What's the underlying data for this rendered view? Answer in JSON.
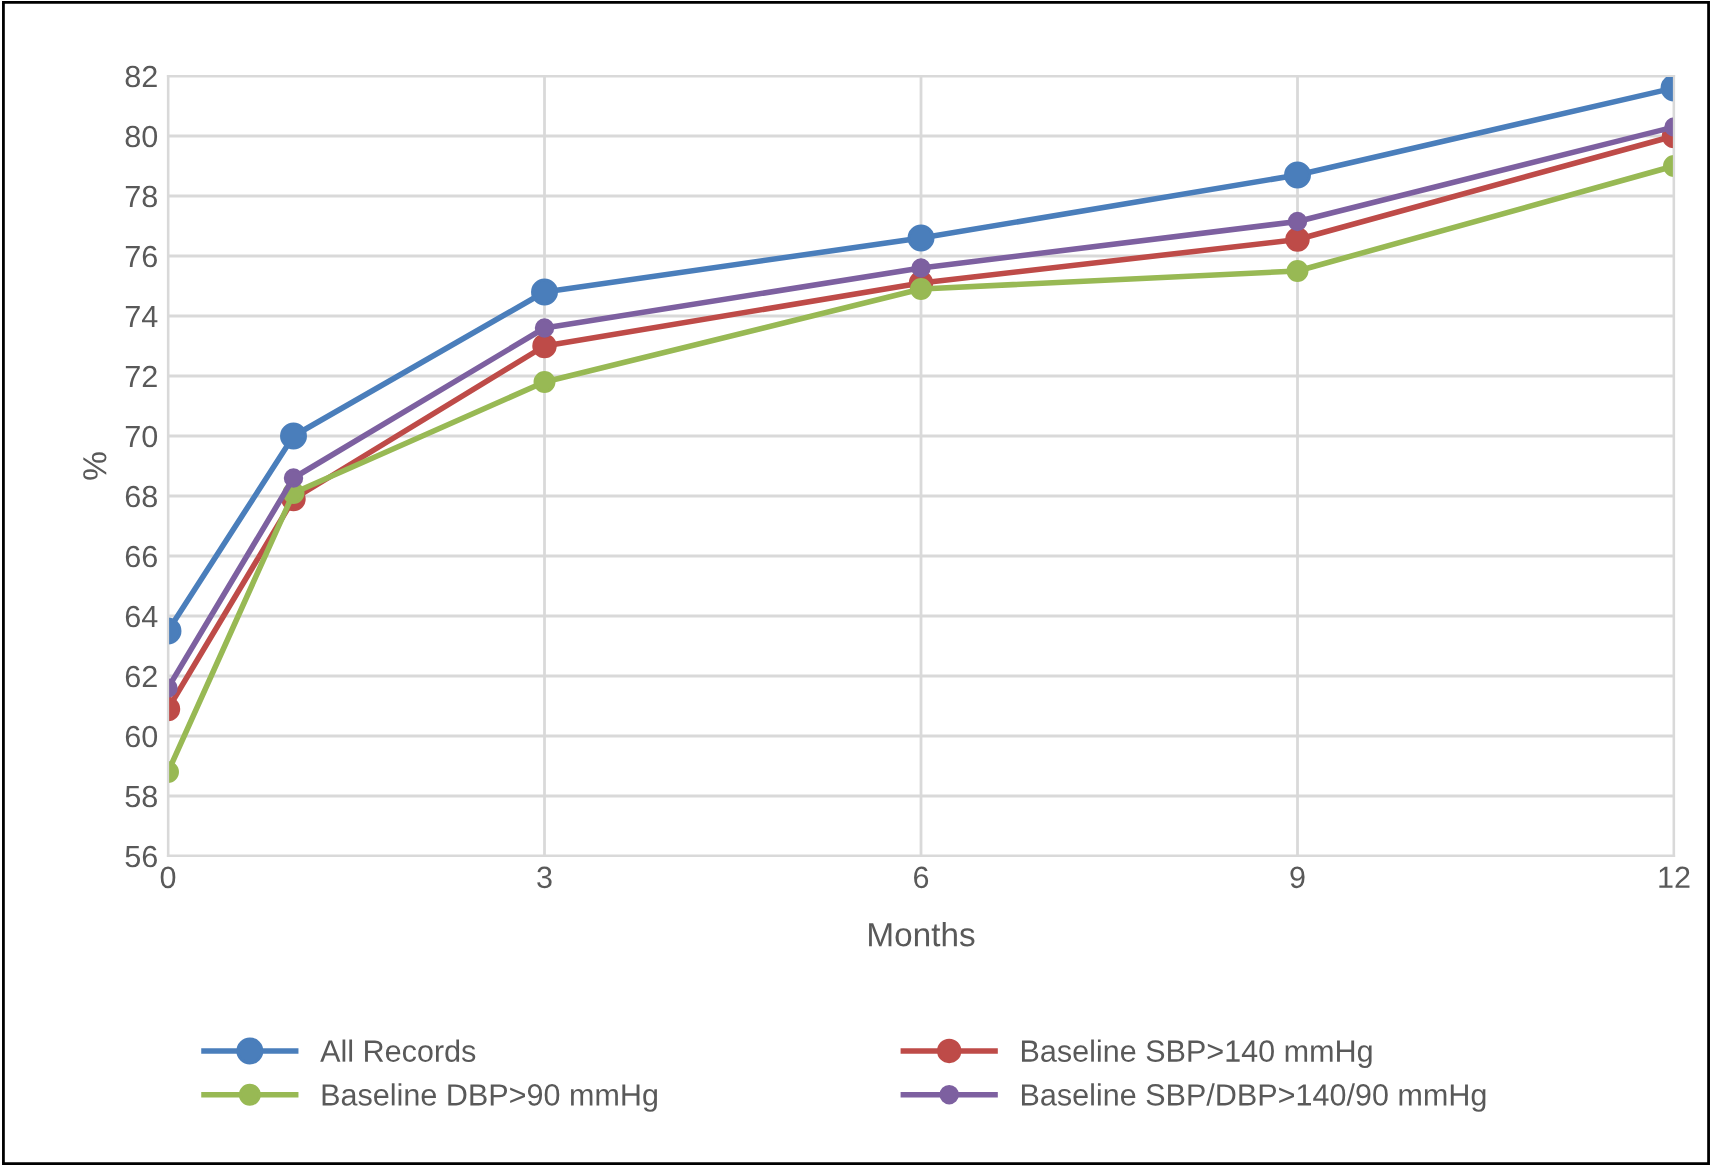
{
  "chart_data": {
    "type": "line",
    "xlabel": "Months",
    "ylabel": "%",
    "xlim": [
      0,
      12
    ],
    "xticks": [
      0,
      3,
      6,
      9,
      12
    ],
    "ylim": [
      56,
      82
    ],
    "yticks": [
      56,
      58,
      60,
      62,
      64,
      66,
      68,
      70,
      72,
      74,
      76,
      78,
      80,
      82
    ],
    "grid": true,
    "legend": "bottom",
    "marker": "circle",
    "line_style": "solid",
    "x": [
      0,
      1,
      3,
      6,
      9,
      12
    ],
    "series": [
      {
        "name": "All Records",
        "color": "#4a7ebb",
        "values": [
          63.5,
          70.0,
          74.8,
          76.6,
          78.7,
          81.6
        ]
      },
      {
        "name": "Baseline SBP>140 mmHg",
        "color": "#be4b48",
        "values": [
          60.9,
          67.9,
          73.0,
          75.1,
          76.55,
          80.0
        ]
      },
      {
        "name": "Baseline DBP>90 mmHg",
        "color": "#98b954",
        "values": [
          58.8,
          68.1,
          71.8,
          74.9,
          75.5,
          79.0
        ]
      },
      {
        "name": "Baseline SBP/DBP>140/90 mmHg",
        "color": "#7d60a0",
        "values": [
          61.6,
          68.6,
          73.6,
          75.6,
          77.15,
          80.3
        ]
      }
    ]
  }
}
